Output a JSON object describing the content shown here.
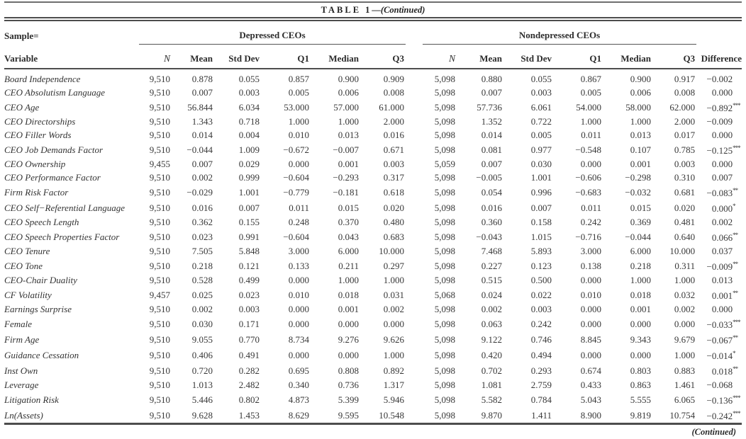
{
  "table": {
    "table_label": "TABLE 1",
    "title_continued": "—(Continued)",
    "sample_label": "Sample=",
    "variable_label": "Variable",
    "groups": [
      {
        "label": "Depressed CEOs"
      },
      {
        "label": "Nondepressed CEOs"
      }
    ],
    "stat_headers": [
      "N",
      "Mean",
      "Std Dev",
      "Q1",
      "Median",
      "Q3"
    ],
    "difference_header": "Difference",
    "continued_note": "(Continued)",
    "rows": [
      {
        "variable": "Board Independence",
        "dep": [
          "9,510",
          "0.878",
          "0.055",
          "0.857",
          "0.900",
          "0.909"
        ],
        "nondep": [
          "5,098",
          "0.880",
          "0.055",
          "0.867",
          "0.900",
          "0.917"
        ],
        "diff": "−0.002",
        "stars": ""
      },
      {
        "variable": "CEO Absolutism Language",
        "dep": [
          "9,510",
          "0.007",
          "0.003",
          "0.005",
          "0.006",
          "0.008"
        ],
        "nondep": [
          "5,098",
          "0.007",
          "0.003",
          "0.005",
          "0.006",
          "0.008"
        ],
        "diff": "0.000",
        "stars": ""
      },
      {
        "variable": "CEO Age",
        "dep": [
          "9,510",
          "56.844",
          "6.034",
          "53.000",
          "57.000",
          "61.000"
        ],
        "nondep": [
          "5,098",
          "57.736",
          "6.061",
          "54.000",
          "58.000",
          "62.000"
        ],
        "diff": "−0.892",
        "stars": "***"
      },
      {
        "variable": "CEO Directorships",
        "dep": [
          "9,510",
          "1.343",
          "0.718",
          "1.000",
          "1.000",
          "2.000"
        ],
        "nondep": [
          "5,098",
          "1.352",
          "0.722",
          "1.000",
          "1.000",
          "2.000"
        ],
        "diff": "−0.009",
        "stars": ""
      },
      {
        "variable": "CEO Filler Words",
        "dep": [
          "9,510",
          "0.014",
          "0.004",
          "0.010",
          "0.013",
          "0.016"
        ],
        "nondep": [
          "5,098",
          "0.014",
          "0.005",
          "0.011",
          "0.013",
          "0.017"
        ],
        "diff": "0.000",
        "stars": ""
      },
      {
        "variable": "CEO Job Demands Factor",
        "dep": [
          "9,510",
          "−0.044",
          "1.009",
          "−0.672",
          "−0.007",
          "0.671"
        ],
        "nondep": [
          "5,098",
          "0.081",
          "0.977",
          "−0.548",
          "0.107",
          "0.785"
        ],
        "diff": "−0.125",
        "stars": "***"
      },
      {
        "variable": "CEO Ownership",
        "dep": [
          "9,455",
          "0.007",
          "0.029",
          "0.000",
          "0.001",
          "0.003"
        ],
        "nondep": [
          "5,059",
          "0.007",
          "0.030",
          "0.000",
          "0.001",
          "0.003"
        ],
        "diff": "0.000",
        "stars": ""
      },
      {
        "variable": "CEO Performance Factor",
        "dep": [
          "9,510",
          "0.002",
          "0.999",
          "−0.604",
          "−0.293",
          "0.317"
        ],
        "nondep": [
          "5,098",
          "−0.005",
          "1.001",
          "−0.606",
          "−0.298",
          "0.310"
        ],
        "diff": "0.007",
        "stars": ""
      },
      {
        "variable": "Firm Risk Factor",
        "dep": [
          "9,510",
          "−0.029",
          "1.001",
          "−0.779",
          "−0.181",
          "0.618"
        ],
        "nondep": [
          "5,098",
          "0.054",
          "0.996",
          "−0.683",
          "−0.032",
          "0.681"
        ],
        "diff": "−0.083",
        "stars": "**"
      },
      {
        "variable": "CEO Self−Referential Language",
        "dep": [
          "9,510",
          "0.016",
          "0.007",
          "0.011",
          "0.015",
          "0.020"
        ],
        "nondep": [
          "5,098",
          "0.016",
          "0.007",
          "0.011",
          "0.015",
          "0.020"
        ],
        "diff": "0.000",
        "stars": "*"
      },
      {
        "variable": "CEO Speech Length",
        "dep": [
          "9,510",
          "0.362",
          "0.155",
          "0.248",
          "0.370",
          "0.480"
        ],
        "nondep": [
          "5,098",
          "0.360",
          "0.158",
          "0.242",
          "0.369",
          "0.481"
        ],
        "diff": "0.002",
        "stars": ""
      },
      {
        "variable": "CEO Speech Properties Factor",
        "dep": [
          "9,510",
          "0.023",
          "0.991",
          "−0.604",
          "0.043",
          "0.683"
        ],
        "nondep": [
          "5,098",
          "−0.043",
          "1.015",
          "−0.716",
          "−0.044",
          "0.640"
        ],
        "diff": "0.066",
        "stars": "**"
      },
      {
        "variable": "CEO Tenure",
        "dep": [
          "9,510",
          "7.505",
          "5.848",
          "3.000",
          "6.000",
          "10.000"
        ],
        "nondep": [
          "5,098",
          "7.468",
          "5.893",
          "3.000",
          "6.000",
          "10.000"
        ],
        "diff": "0.037",
        "stars": ""
      },
      {
        "variable": "CEO Tone",
        "dep": [
          "9,510",
          "0.218",
          "0.121",
          "0.133",
          "0.211",
          "0.297"
        ],
        "nondep": [
          "5,098",
          "0.227",
          "0.123",
          "0.138",
          "0.218",
          "0.311"
        ],
        "diff": "−0.009",
        "stars": "**"
      },
      {
        "variable": "CEO-Chair Duality",
        "dep": [
          "9,510",
          "0.528",
          "0.499",
          "0.000",
          "1.000",
          "1.000"
        ],
        "nondep": [
          "5,098",
          "0.515",
          "0.500",
          "0.000",
          "1.000",
          "1.000"
        ],
        "diff": "0.013",
        "stars": ""
      },
      {
        "variable": "CF Volatility",
        "dep": [
          "9,457",
          "0.025",
          "0.023",
          "0.010",
          "0.018",
          "0.031"
        ],
        "nondep": [
          "5,068",
          "0.024",
          "0.022",
          "0.010",
          "0.018",
          "0.032"
        ],
        "diff": "0.001",
        "stars": "**"
      },
      {
        "variable": "Earnings Surprise",
        "dep": [
          "9,510",
          "0.002",
          "0.003",
          "0.000",
          "0.001",
          "0.002"
        ],
        "nondep": [
          "5,098",
          "0.002",
          "0.003",
          "0.000",
          "0.001",
          "0.002"
        ],
        "diff": "0.000",
        "stars": ""
      },
      {
        "variable": "Female",
        "dep": [
          "9,510",
          "0.030",
          "0.171",
          "0.000",
          "0.000",
          "0.000"
        ],
        "nondep": [
          "5,098",
          "0.063",
          "0.242",
          "0.000",
          "0.000",
          "0.000"
        ],
        "diff": "−0.033",
        "stars": "***"
      },
      {
        "variable": "Firm Age",
        "dep": [
          "9,510",
          "9.055",
          "0.770",
          "8.734",
          "9.276",
          "9.626"
        ],
        "nondep": [
          "5,098",
          "9.122",
          "0.746",
          "8.845",
          "9.343",
          "9.679"
        ],
        "diff": "−0.067",
        "stars": "**"
      },
      {
        "variable": "Guidance Cessation",
        "dep": [
          "9,510",
          "0.406",
          "0.491",
          "0.000",
          "0.000",
          "1.000"
        ],
        "nondep": [
          "5,098",
          "0.420",
          "0.494",
          "0.000",
          "0.000",
          "1.000"
        ],
        "diff": "−0.014",
        "stars": "*"
      },
      {
        "variable": "Inst Own",
        "dep": [
          "9,510",
          "0.720",
          "0.282",
          "0.695",
          "0.808",
          "0.892"
        ],
        "nondep": [
          "5,098",
          "0.702",
          "0.293",
          "0.674",
          "0.803",
          "0.883"
        ],
        "diff": "0.018",
        "stars": "**"
      },
      {
        "variable": "Leverage",
        "dep": [
          "9,510",
          "1.013",
          "2.482",
          "0.340",
          "0.736",
          "1.317"
        ],
        "nondep": [
          "5,098",
          "1.081",
          "2.759",
          "0.433",
          "0.863",
          "1.461"
        ],
        "diff": "−0.068",
        "stars": ""
      },
      {
        "variable": "Litigation Risk",
        "dep": [
          "9,510",
          "5.446",
          "0.802",
          "4.873",
          "5.399",
          "5.946"
        ],
        "nondep": [
          "5,098",
          "5.582",
          "0.784",
          "5.043",
          "5.555",
          "6.065"
        ],
        "diff": "−0.136",
        "stars": "***"
      },
      {
        "variable": "Ln(Assets)",
        "dep": [
          "9,510",
          "9.628",
          "1.453",
          "8.629",
          "9.595",
          "10.548"
        ],
        "nondep": [
          "5,098",
          "9.870",
          "1.411",
          "8.900",
          "9.819",
          "10.754"
        ],
        "diff": "−0.242",
        "stars": "***"
      }
    ]
  }
}
